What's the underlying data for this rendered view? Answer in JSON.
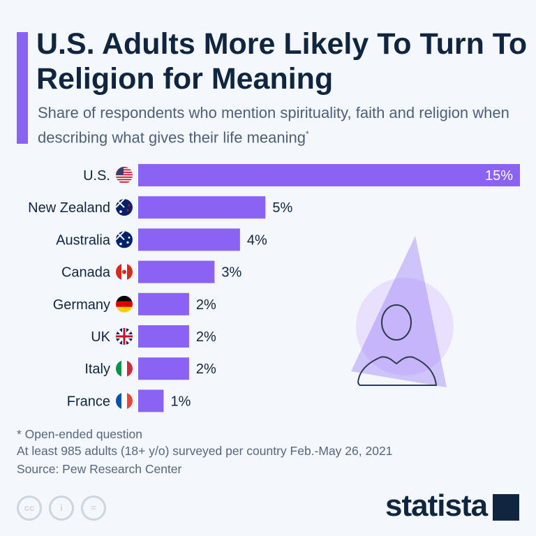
{
  "title": "U.S. Adults More Likely To Turn To Religion for Meaning",
  "subtitle": "Share of respondents who mention spirituality, faith and religion when describing what gives their life meaning",
  "subtitle_mark": "*",
  "colors": {
    "bar": "#8a63f5",
    "text": "#10253f"
  },
  "chart_data": {
    "type": "bar",
    "orientation": "horizontal",
    "title": "U.S. Adults More Likely To Turn To Religion for Meaning",
    "categories": [
      "U.S.",
      "New Zealand",
      "Australia",
      "Canada",
      "Germany",
      "UK",
      "Italy",
      "France"
    ],
    "values": [
      15,
      5,
      4,
      3,
      2,
      2,
      2,
      1
    ],
    "labels": [
      "15%",
      "5%",
      "4%",
      "3%",
      "2%",
      "2%",
      "2%",
      "1%"
    ],
    "unit": "%",
    "xlim": [
      0,
      15
    ],
    "grid": false
  },
  "footer": {
    "note": "* Open-ended question",
    "survey": "At least 985 adults (18+ y/o) surveyed per country Feb.-May 26, 2021",
    "source": "Source: Pew Research Center"
  },
  "license": [
    "cc",
    "i",
    "="
  ],
  "logo": "statista"
}
